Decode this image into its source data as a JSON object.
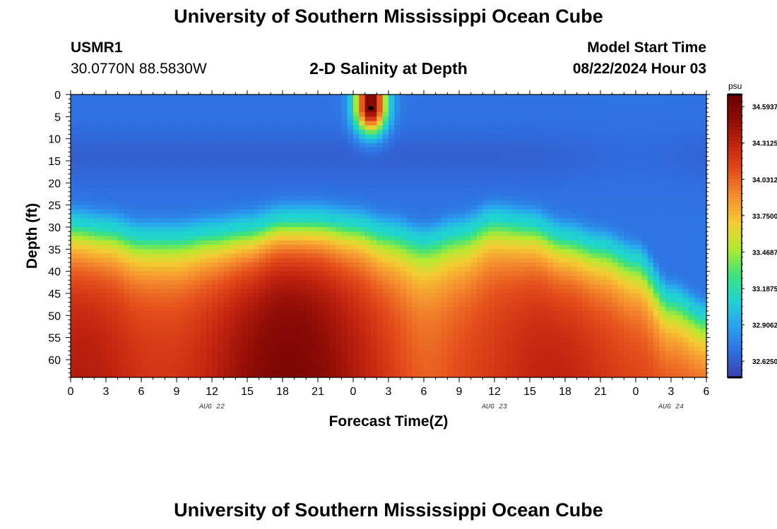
{
  "page_title": "University of Southern Mississippi Ocean Cube",
  "footer_title": "University of Southern Mississippi Ocean Cube",
  "station": {
    "id": "USMR1",
    "coords": "30.0770N  88.5830W"
  },
  "plot_title": "2-D Salinity at Depth",
  "model_start": {
    "label": "Model Start Time",
    "value": "08/22/2024 Hour 03"
  },
  "chart_data": {
    "type": "heatmap",
    "title": "2-D Salinity at Depth",
    "xlabel": "Forecast Time(Z)",
    "ylabel": "Depth (ft)",
    "x_ticks": [
      "0",
      "3",
      "6",
      "9",
      "12",
      "15",
      "18",
      "21",
      "0",
      "3",
      "6",
      "9",
      "12",
      "15",
      "18",
      "21",
      "0",
      "3",
      "6"
    ],
    "x_range_hours": [
      0,
      54
    ],
    "date_labels": [
      {
        "text": "AUG 22",
        "hour": 12
      },
      {
        "text": "AUG 23",
        "hour": 36
      },
      {
        "text": "AUG 24",
        "hour": 51
      }
    ],
    "y_ticks": [
      0,
      5,
      10,
      15,
      20,
      25,
      30,
      35,
      40,
      45,
      50,
      55,
      60
    ],
    "y_range_ft": [
      0,
      64
    ],
    "colorbar": {
      "unit": "psu",
      "min": 32.5,
      "max": 34.6875,
      "labels": [
        "34.5937",
        "34.3125",
        "34.0312",
        "33.7500",
        "33.4687",
        "33.1875",
        "32.9062",
        "32.6250"
      ]
    },
    "halocline_depth_ft": [
      {
        "hour": 0,
        "depth": 29
      },
      {
        "hour": 3,
        "depth": 30
      },
      {
        "hour": 6,
        "depth": 32
      },
      {
        "hour": 9,
        "depth": 32
      },
      {
        "hour": 12,
        "depth": 31
      },
      {
        "hour": 15,
        "depth": 30
      },
      {
        "hour": 18,
        "depth": 28
      },
      {
        "hour": 21,
        "depth": 28
      },
      {
        "hour": 24,
        "depth": 29
      },
      {
        "hour": 27,
        "depth": 31
      },
      {
        "hour": 30,
        "depth": 33
      },
      {
        "hour": 33,
        "depth": 31
      },
      {
        "hour": 36,
        "depth": 28
      },
      {
        "hour": 39,
        "depth": 29
      },
      {
        "hour": 42,
        "depth": 32
      },
      {
        "hour": 45,
        "depth": 34
      },
      {
        "hour": 48,
        "depth": 37
      },
      {
        "hour": 51,
        "depth": 46
      },
      {
        "hour": 54,
        "depth": 50
      }
    ],
    "surface_salinity_psu": 32.72,
    "max_bottom_salinity_psu": 34.65,
    "surface_maximum": {
      "hour": 25.5,
      "depth_ft": 3,
      "salinity_psu": 34.6
    }
  },
  "colors": {
    "colormap": [
      "#3b3fab",
      "#2f6ee0",
      "#2aa3f0",
      "#20d4d0",
      "#3ee37a",
      "#b4ea30",
      "#f4cc33",
      "#f59030",
      "#e54f1c",
      "#c42510",
      "#8f0c06",
      "#6a0000"
    ]
  }
}
